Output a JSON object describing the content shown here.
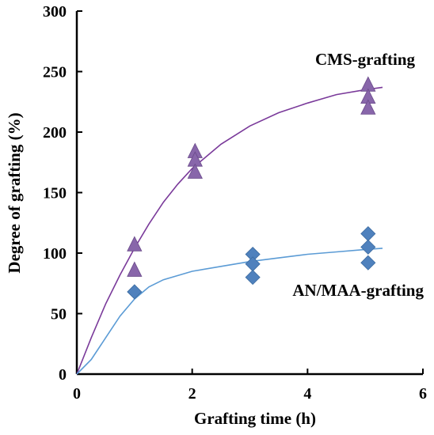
{
  "chart_data": {
    "type": "scatter",
    "title": "",
    "xlabel": "Grafting time (h)",
    "ylabel": "Degree of grafting (%)",
    "xlim": [
      0,
      6
    ],
    "ylim": [
      0,
      300
    ],
    "x_ticks": [
      "0",
      "2",
      "4",
      "6"
    ],
    "y_ticks": [
      "0",
      "50",
      "100",
      "150",
      "200",
      "250",
      "300"
    ],
    "grid": false,
    "series": [
      {
        "name": "CMS-grafting",
        "marker": "triangle",
        "color": "#8866aa",
        "line_color": "#7a3a9a",
        "points": [
          [
            1.0,
            107
          ],
          [
            1.0,
            86
          ],
          [
            2.05,
            184
          ],
          [
            2.05,
            177
          ],
          [
            2.05,
            167
          ],
          [
            5.05,
            239
          ],
          [
            5.05,
            229
          ],
          [
            5.05,
            220
          ]
        ],
        "fit": [
          [
            0,
            0
          ],
          [
            0.25,
            30
          ],
          [
            0.5,
            58
          ],
          [
            0.75,
            82
          ],
          [
            1.0,
            104
          ],
          [
            1.25,
            124
          ],
          [
            1.5,
            142
          ],
          [
            1.75,
            157
          ],
          [
            2.0,
            170
          ],
          [
            2.5,
            190
          ],
          [
            3.0,
            205
          ],
          [
            3.5,
            216
          ],
          [
            4.0,
            224
          ],
          [
            4.5,
            231
          ],
          [
            5.0,
            235
          ],
          [
            5.3,
            237
          ]
        ]
      },
      {
        "name": "AN/MAA-grafting",
        "marker": "diamond",
        "color": "#4f81bd",
        "line_color": "#5b9bd5",
        "points": [
          [
            1.0,
            68
          ],
          [
            3.05,
            99
          ],
          [
            3.05,
            91
          ],
          [
            3.05,
            80
          ],
          [
            5.05,
            116
          ],
          [
            5.05,
            105
          ],
          [
            5.05,
            92
          ]
        ],
        "fit": [
          [
            0,
            0
          ],
          [
            0.25,
            12
          ],
          [
            0.5,
            30
          ],
          [
            0.75,
            48
          ],
          [
            1.0,
            62
          ],
          [
            1.25,
            72
          ],
          [
            1.5,
            78
          ],
          [
            2.0,
            85
          ],
          [
            2.5,
            89
          ],
          [
            3.0,
            93
          ],
          [
            3.5,
            96
          ],
          [
            4.0,
            99
          ],
          [
            4.5,
            101
          ],
          [
            5.0,
            103
          ],
          [
            5.3,
            104
          ]
        ]
      }
    ]
  }
}
